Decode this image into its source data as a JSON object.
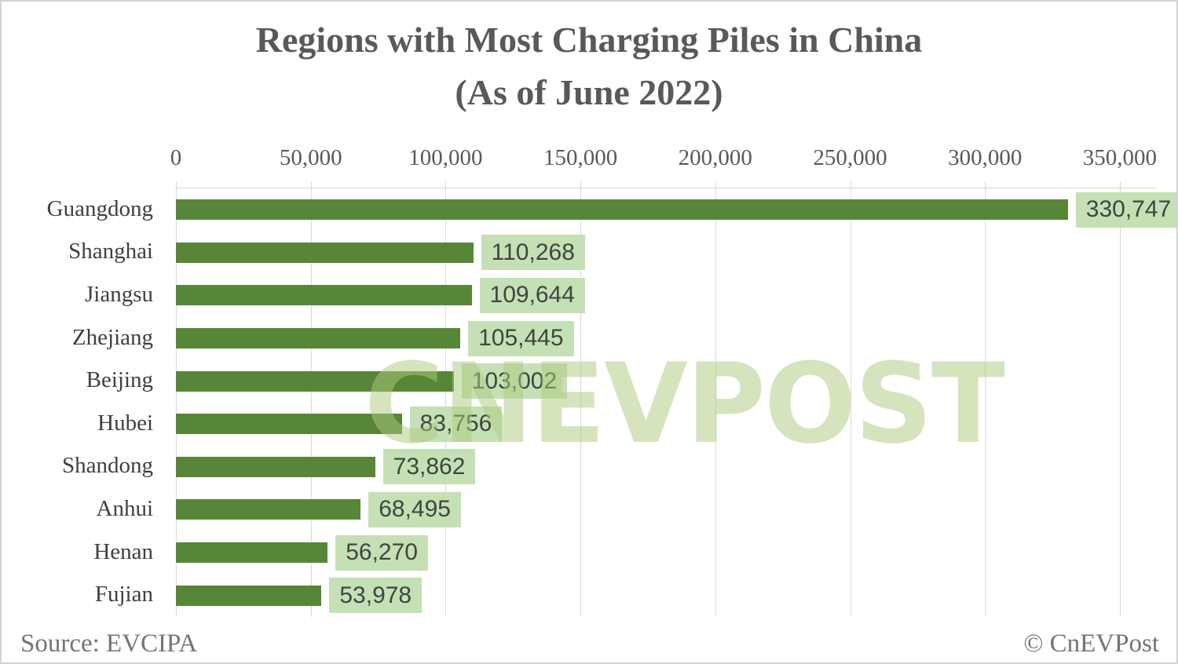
{
  "title": {
    "line1": "Regions with Most Charging Piles in China",
    "line2": "(As of June 2022)"
  },
  "chart_data": {
    "type": "bar",
    "orientation": "horizontal",
    "title": "Regions with Most Charging Piles in China (As of June 2022)",
    "categories": [
      "Guangdong",
      "Shanghai",
      "Jiangsu",
      "Zhejiang",
      "Beijing",
      "Hubei",
      "Shandong",
      "Anhui",
      "Henan",
      "Fujian"
    ],
    "values": [
      330747,
      110268,
      109644,
      105445,
      103002,
      83756,
      73862,
      68495,
      56270,
      53978
    ],
    "value_labels": [
      "330,747",
      "110,268",
      "109,644",
      "105,445",
      "103,002",
      "83,756",
      "73,862",
      "68,495",
      "56,270",
      "53,978"
    ],
    "x_tick_labels": [
      "0",
      "50,000",
      "100,000",
      "150,000",
      "200,000",
      "250,000",
      "300,000",
      "350,000"
    ],
    "x_tick_values": [
      0,
      50000,
      100000,
      150000,
      200000,
      250000,
      300000,
      350000
    ],
    "xlim": [
      0,
      363000
    ],
    "xlabel": "",
    "ylabel": "",
    "grid": "vertical-only",
    "legend": "none",
    "bar_color": "#588639",
    "value_box_bg": "#c5e0b4",
    "gridline_color": "#d9d9d9"
  },
  "watermark": {
    "text": "CNEVPOST",
    "color": "#aecb7f"
  },
  "footer": {
    "source": "Source: EVCIPA",
    "copyright": "© CnEVPost"
  }
}
